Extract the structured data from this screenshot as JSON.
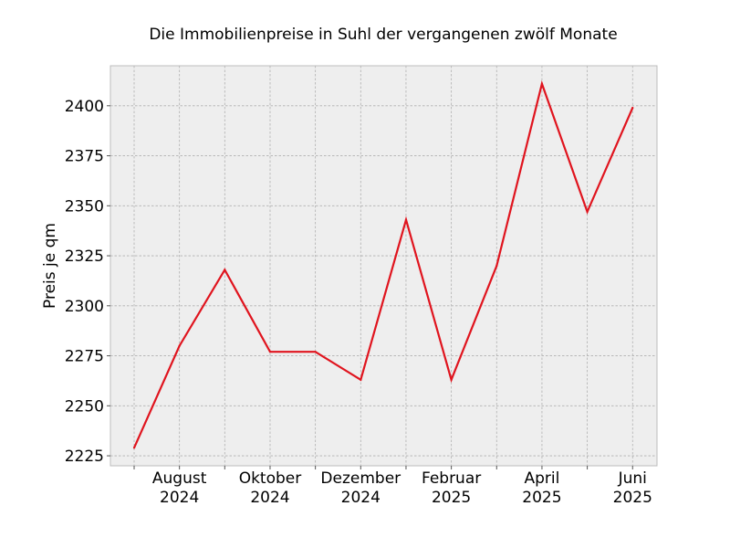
{
  "chart_data": {
    "type": "line",
    "title": "Die Immobilienpreise in Suhl der vergangenen zwölf Monate",
    "xlabel": "",
    "ylabel": "Preis je qm",
    "x": [
      "2024-07",
      "2024-08",
      "2024-09",
      "2024-10",
      "2024-11",
      "2024-12",
      "2025-01",
      "2025-02",
      "2025-03",
      "2025-04",
      "2025-05",
      "2025-06"
    ],
    "series": [
      {
        "values": [
          2229,
          2280,
          2318,
          2277,
          2277,
          2263,
          2343,
          2263,
          2320,
          2411,
          2347,
          2399
        ]
      }
    ],
    "x_tick_labels": [
      {
        "line1": "August",
        "line2": "2024"
      },
      {
        "line1": "Oktober",
        "line2": "2024"
      },
      {
        "line1": "Dezember",
        "line2": "2024"
      },
      {
        "line1": "Februar",
        "line2": "2025"
      },
      {
        "line1": "April",
        "line2": "2025"
      },
      {
        "line1": "Juni",
        "line2": "2025"
      }
    ],
    "y_ticks": [
      2225,
      2250,
      2275,
      2300,
      2325,
      2350,
      2375,
      2400
    ],
    "ylim": [
      2220,
      2420
    ],
    "grid": true,
    "line_color": "#e0141e",
    "background_color": "#eeeeee"
  }
}
